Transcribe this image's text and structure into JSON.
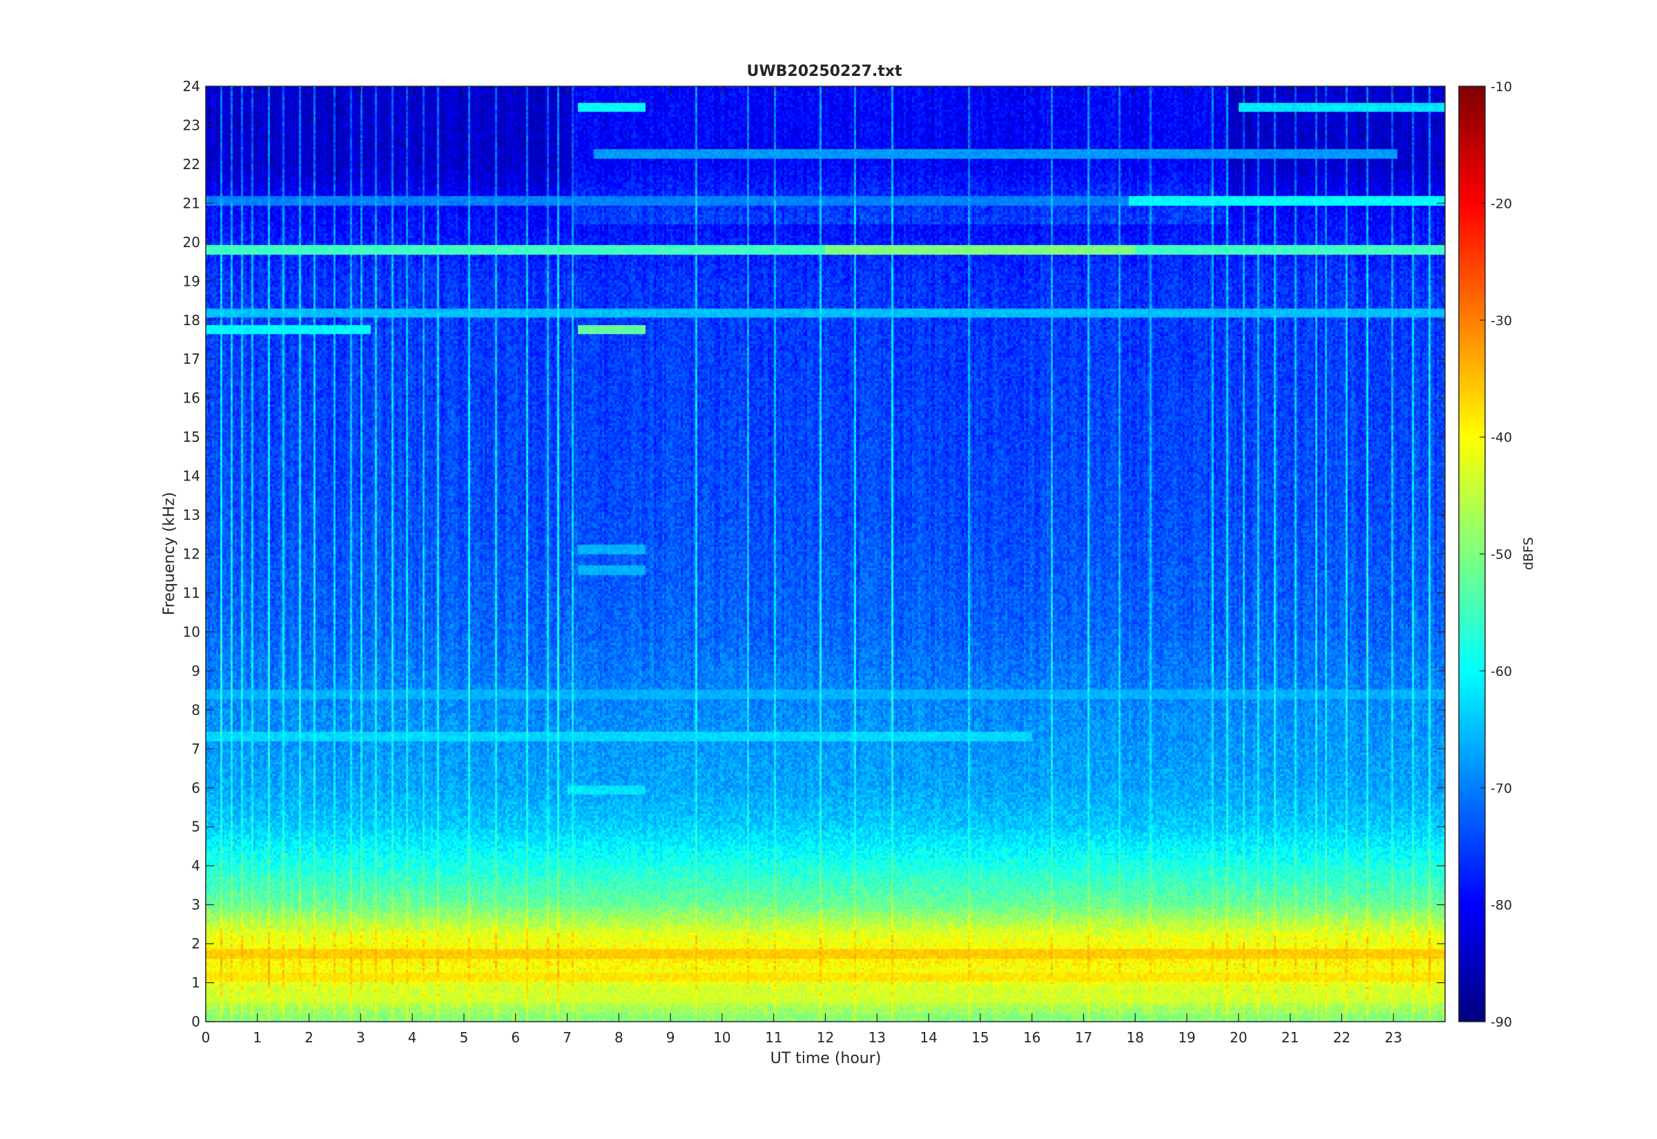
{
  "chart_data": {
    "type": "heatmap",
    "title": "UWB20250227.txt",
    "xlabel": "UT time (hour)",
    "ylabel": "Frequency (kHz)",
    "xlim": [
      0,
      24
    ],
    "ylim": [
      0,
      24
    ],
    "x_ticks": [
      0,
      1,
      2,
      3,
      4,
      5,
      6,
      7,
      8,
      9,
      10,
      11,
      12,
      13,
      14,
      15,
      16,
      17,
      18,
      19,
      20,
      21,
      22,
      23
    ],
    "y_ticks": [
      0,
      1,
      2,
      3,
      4,
      5,
      6,
      7,
      8,
      9,
      10,
      11,
      12,
      13,
      14,
      15,
      16,
      17,
      18,
      19,
      20,
      21,
      22,
      23,
      24
    ],
    "colorbar": {
      "label": "dBFS",
      "clim": [
        -90,
        -10
      ],
      "ticks": [
        -10,
        -20,
        -30,
        -40,
        -50,
        -60,
        -70,
        -80,
        -90
      ],
      "colormap": "jet"
    },
    "grid": false,
    "background_profile": {
      "description_free_levels": true,
      "freq_khz": [
        0,
        0.5,
        1.0,
        1.6,
        2.2,
        3.0,
        4.0,
        5.0,
        6.0,
        8.0,
        10.0,
        13.0,
        16.0,
        19.0,
        21.0,
        22.0,
        24.0
      ],
      "dbfs": [
        -50,
        -45,
        -42,
        -39,
        -42,
        -52,
        -58,
        -64,
        -67,
        -69,
        -72,
        -74,
        -75,
        -76,
        -80,
        -84,
        -84
      ]
    },
    "bands": [
      {
        "freq_khz": 19.8,
        "t_start": 0,
        "t_end": 24,
        "dbfs": -55
      },
      {
        "freq_khz": 19.8,
        "t_start": 12,
        "t_end": 18,
        "dbfs": -50
      },
      {
        "freq_khz": 18.2,
        "t_start": 0,
        "t_end": 24,
        "dbfs": -65
      },
      {
        "freq_khz": 17.8,
        "t_start": 7.2,
        "t_end": 8.5,
        "dbfs": -52
      },
      {
        "freq_khz": 17.8,
        "t_start": 0,
        "t_end": 3.2,
        "dbfs": -60
      },
      {
        "freq_khz": 21.1,
        "t_start": 17.9,
        "t_end": 24,
        "dbfs": -60
      },
      {
        "freq_khz": 21.1,
        "t_start": 0,
        "t_end": 17.9,
        "dbfs": -70
      },
      {
        "freq_khz": 23.5,
        "t_start": 7.2,
        "t_end": 8.5,
        "dbfs": -60
      },
      {
        "freq_khz": 23.5,
        "t_start": 20.0,
        "t_end": 24,
        "dbfs": -62
      },
      {
        "freq_khz": 22.3,
        "t_start": 7.5,
        "t_end": 23.1,
        "dbfs": -68
      },
      {
        "freq_khz": 12.1,
        "t_start": 7.2,
        "t_end": 8.5,
        "dbfs": -66
      },
      {
        "freq_khz": 11.6,
        "t_start": 7.2,
        "t_end": 8.5,
        "dbfs": -66
      },
      {
        "freq_khz": 5.9,
        "t_start": 7.0,
        "t_end": 8.5,
        "dbfs": -62
      },
      {
        "freq_khz": 7.3,
        "t_start": 0,
        "t_end": 16.0,
        "dbfs": -63
      },
      {
        "freq_khz": 8.4,
        "t_start": 0,
        "t_end": 24,
        "dbfs": -66
      },
      {
        "freq_khz": 1.7,
        "t_start": 0,
        "t_end": 24,
        "dbfs": -36
      },
      {
        "freq_khz": 1.1,
        "t_start": 0,
        "t_end": 24,
        "dbfs": -38
      },
      {
        "freq_khz": 0.6,
        "t_start": 0,
        "t_end": 24,
        "dbfs": -44
      }
    ],
    "transient_columns_hours": [
      0.3,
      0.5,
      0.7,
      0.9,
      1.2,
      1.5,
      1.8,
      2.1,
      2.5,
      2.8,
      3.0,
      3.3,
      3.6,
      3.9,
      4.2,
      4.5,
      5.1,
      5.6,
      6.2,
      6.6,
      6.8,
      7.1,
      9.5,
      10.5,
      11.0,
      11.9,
      12.6,
      13.3,
      14.8,
      16.4,
      17.1,
      17.7,
      18.3,
      19.5,
      19.8,
      20.1,
      20.4,
      20.7,
      21.1,
      21.5,
      21.7,
      22.1,
      22.5,
      23.0,
      23.4,
      23.7
    ]
  }
}
